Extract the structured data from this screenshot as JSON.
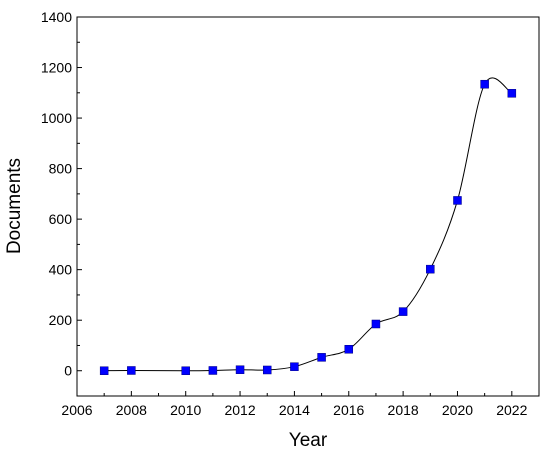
{
  "chart_data": {
    "type": "line",
    "title": "",
    "xlabel": "Year",
    "ylabel": "Documents",
    "xlim": [
      2006,
      2023
    ],
    "ylim": [
      -100,
      1400
    ],
    "xticks": [
      2006,
      2008,
      2010,
      2012,
      2014,
      2016,
      2018,
      2020,
      2022
    ],
    "yticks": [
      0,
      200,
      400,
      600,
      800,
      1000,
      1200,
      1400
    ],
    "grid": false,
    "marker": "square",
    "marker_color": "#0000ff",
    "line_color": "#000000",
    "x": [
      2007,
      2008,
      2010,
      2011,
      2012,
      2013,
      2014,
      2015,
      2016,
      2017,
      2018,
      2019,
      2020,
      2021,
      2022
    ],
    "y": [
      0,
      1,
      0,
      1,
      4,
      3,
      16,
      53,
      85,
      185,
      234,
      402,
      674,
      1134,
      1098
    ]
  }
}
